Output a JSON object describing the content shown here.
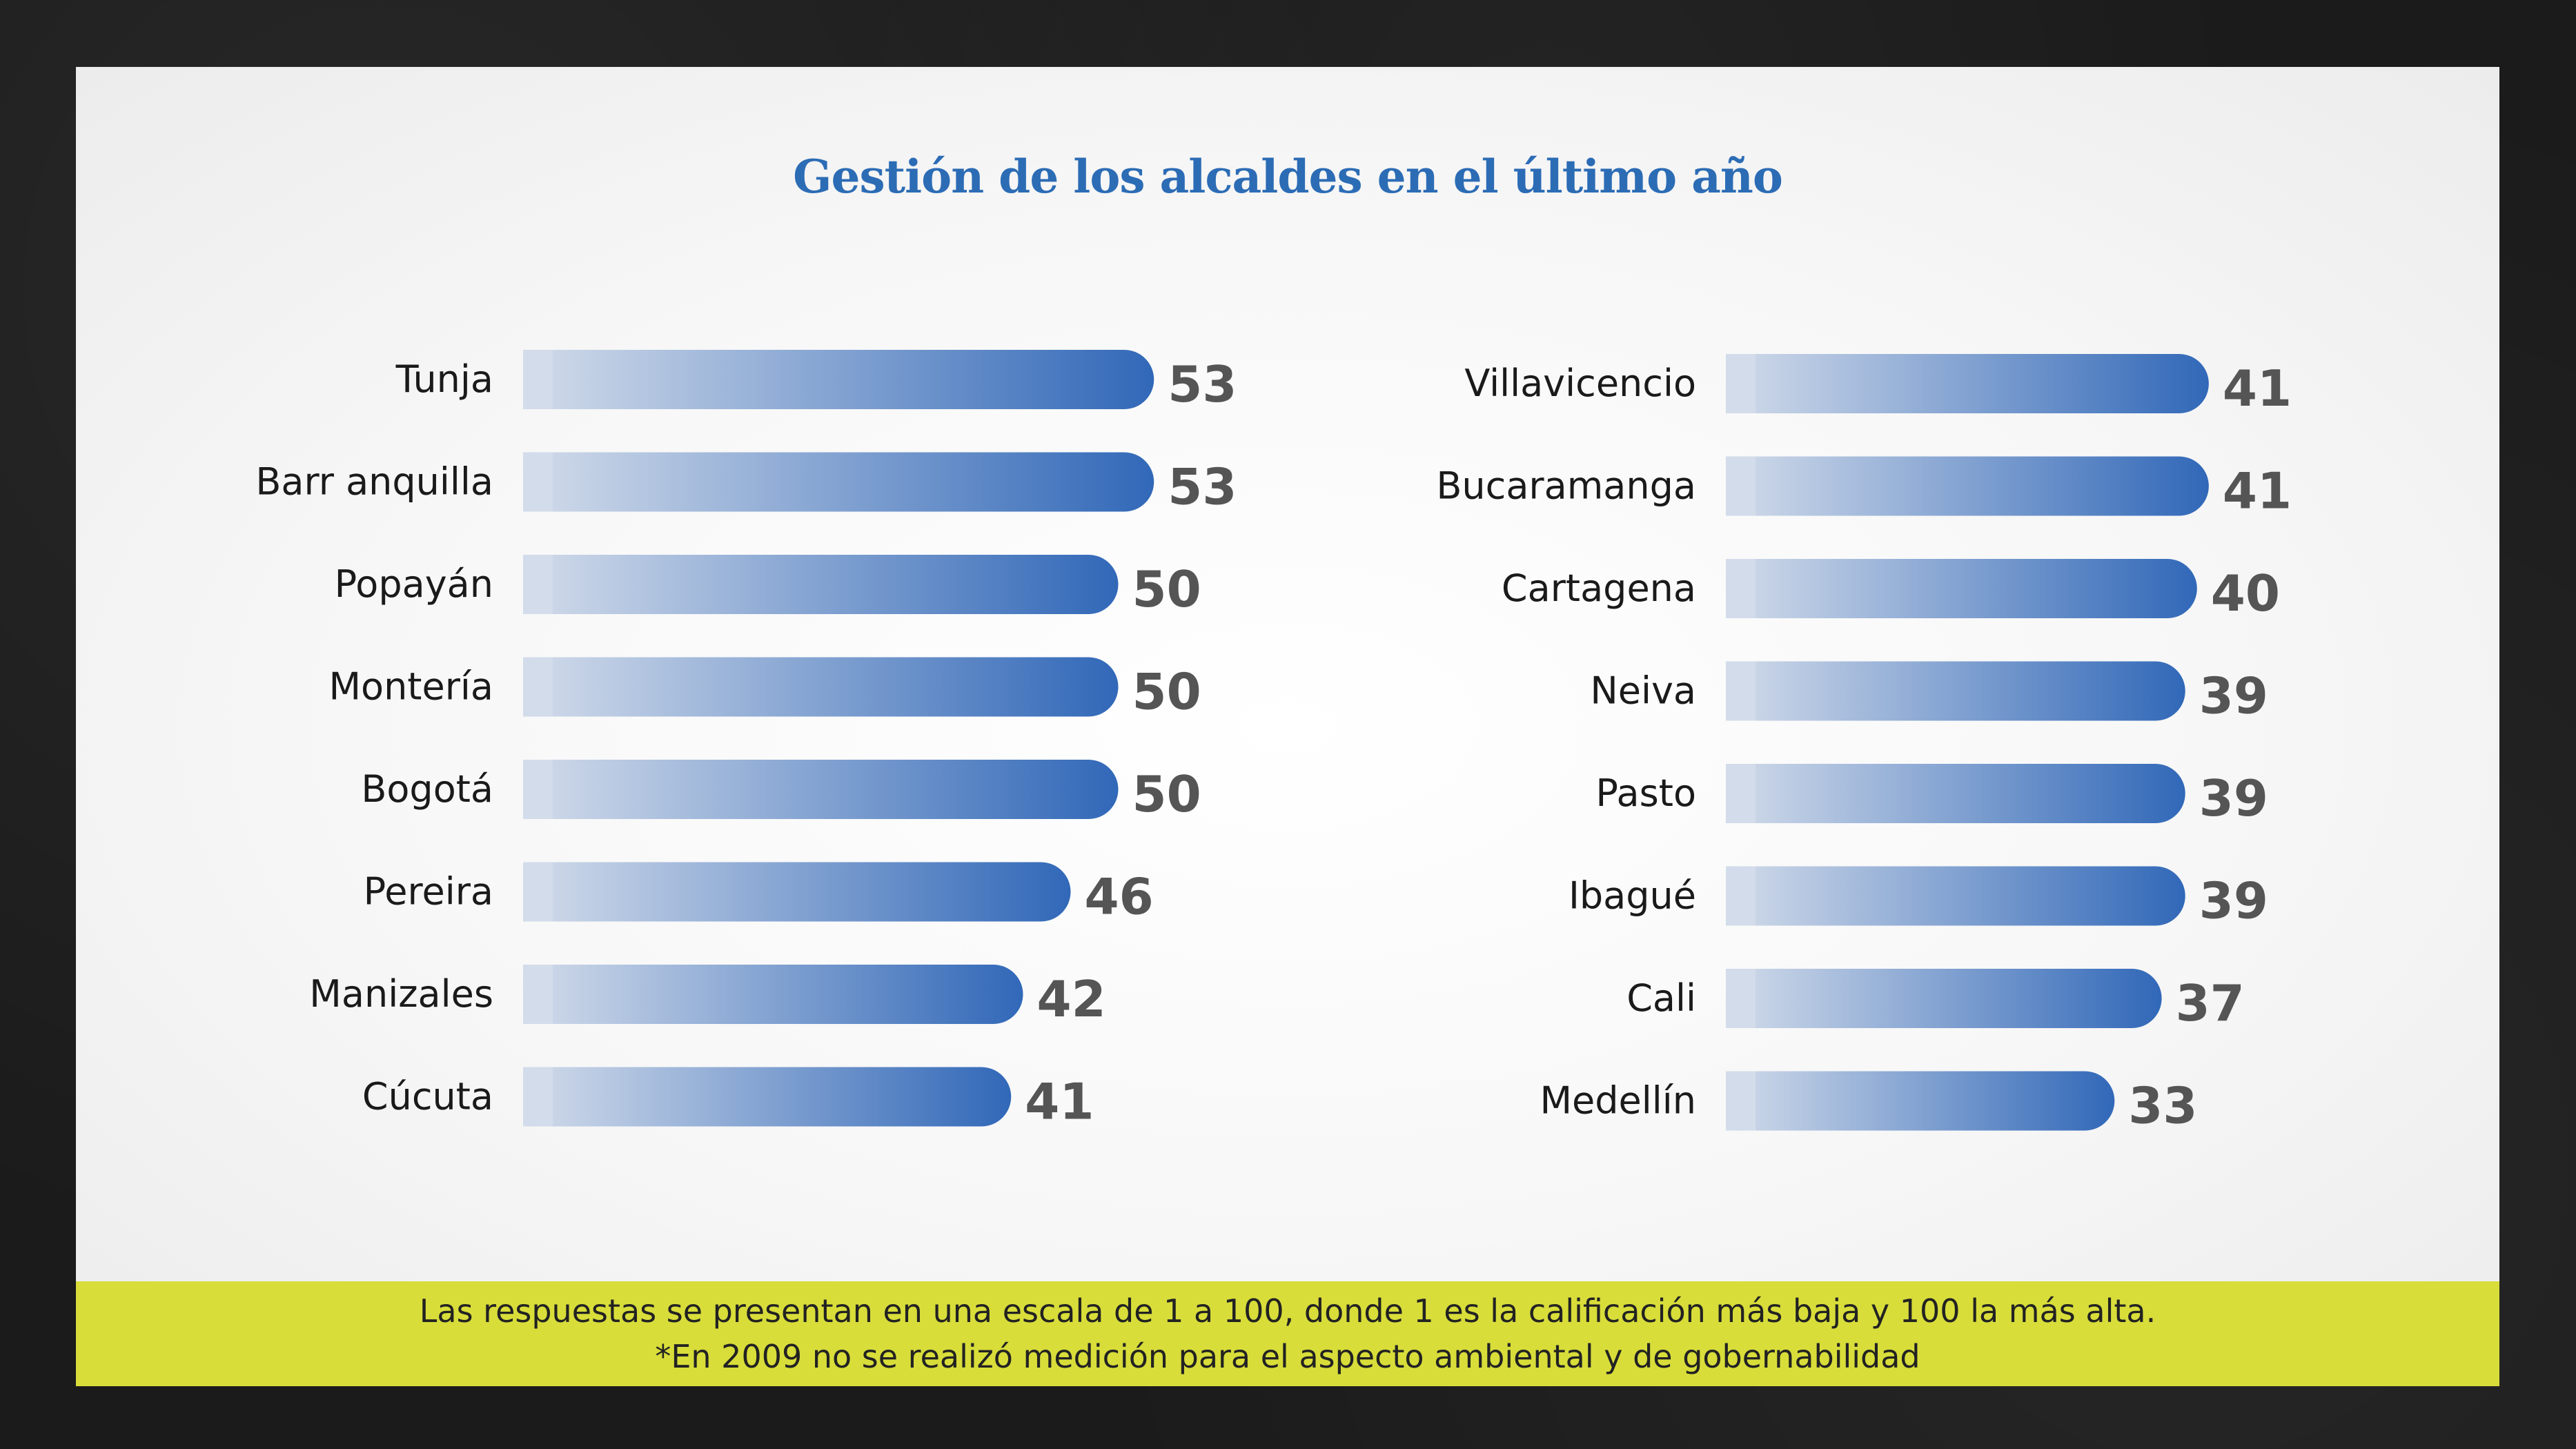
{
  "chart_data": {
    "type": "bar",
    "orientation": "horizontal",
    "title": "Gestión de los alcaldes en el último año",
    "groups": [
      {
        "categories": [
          "Tunja",
          "Barr anquilla",
          "Popayán",
          "Montería",
          "Bogotá",
          "Pereira",
          "Manizales",
          "Cúcuta"
        ],
        "values": [
          53,
          53,
          50,
          50,
          50,
          46,
          42,
          41
        ]
      },
      {
        "categories": [
          "Villavicencio",
          "Bucaramanga",
          "Cartagena",
          "Neiva",
          "Pasto",
          "Ibagué",
          "Cali",
          "Medellín"
        ],
        "values": [
          41,
          41,
          40,
          39,
          39,
          39,
          37,
          33
        ]
      }
    ],
    "xlim": [
      0,
      100
    ],
    "grid": false,
    "legend": "none"
  },
  "footer": {
    "line1": "Las respuestas se presentan en una escala de 1 a 100, donde 1 es la calificación más baja y 100 la más alta.",
    "line2": "*En 2009 no se realizó medición para el aspecto ambiental y de gobernabilidad"
  },
  "colors": {
    "bar_start": "#d3dcea",
    "bar_end": "#3168b8",
    "title": "#2c6cb5",
    "footer_bg": "#d8dd3a",
    "value_text": "#555555"
  }
}
